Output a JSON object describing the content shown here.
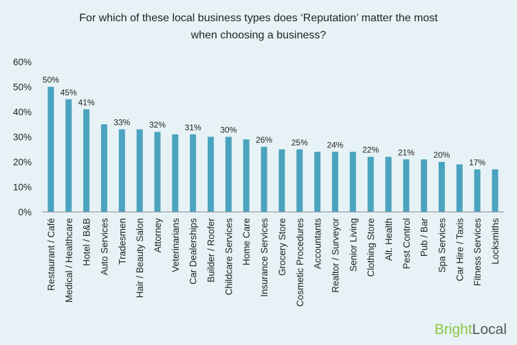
{
  "chart_data": {
    "type": "bar",
    "title_lines": [
      "For which of these local business types does ‘Reputation’ matter the most",
      "when choosing a business?"
    ],
    "categories": [
      "Restaurant / Café",
      "Medical / Healthcare",
      "Hotel / B&B",
      "Auto Services",
      "Tradesmen",
      "Hair / Beauty Salon",
      "Attorney",
      "Veterinarians",
      "Car Dealerships",
      "Builder / Roofer",
      "Childcare Services",
      "Home Care",
      "Insurance Services",
      "Grocery Store",
      "Cosmetic Procedures",
      "Accountants",
      "Realtor / Surveyor",
      "Senior Living",
      "Clothing Store",
      "Alt. Health",
      "Pest Control",
      "Pub / Bar",
      "Spa Services",
      "Car Hire / Taxis",
      "Fitness Services",
      "Locksmiths"
    ],
    "values": [
      50,
      45,
      41,
      35,
      33,
      33,
      32,
      31,
      31,
      30,
      30,
      29,
      26,
      25,
      25,
      24,
      24,
      24,
      22,
      22,
      21,
      21,
      20,
      19,
      17,
      17
    ],
    "data_labels": [
      "50%",
      "45%",
      "41%",
      null,
      "33%",
      null,
      "32%",
      null,
      "31%",
      null,
      "30%",
      null,
      "26%",
      null,
      "25%",
      null,
      "24%",
      null,
      "22%",
      null,
      "21%",
      null,
      "20%",
      null,
      "17%",
      null
    ],
    "yticks": [
      "0%",
      "10%",
      "20%",
      "30%",
      "40%",
      "50%",
      "60%"
    ],
    "ylim": [
      0,
      60
    ],
    "xlabel": "",
    "ylabel": "",
    "grid": false,
    "bar_color": "#4aa3bf"
  },
  "colors": {
    "background": "#e6f2f6",
    "bar": "#4aa3bf",
    "axis": "#888888",
    "logo_bright": "#8cc63f",
    "logo_local": "#555555"
  },
  "logo": {
    "part1": "Bright",
    "part2": "Local"
  }
}
